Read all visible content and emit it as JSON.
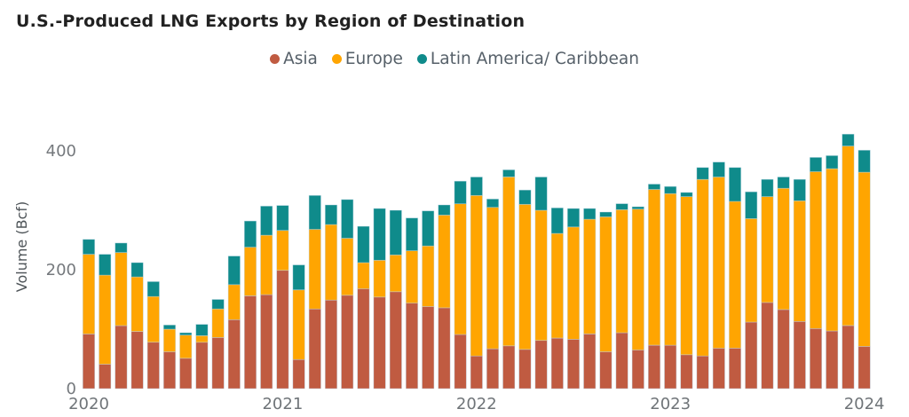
{
  "title": "U.S.-Produced LNG Exports by Region of Destination",
  "legend": {
    "items": [
      {
        "label": "Asia",
        "color": "#c05b41"
      },
      {
        "label": "Europe",
        "color": "#ffa501"
      },
      {
        "label": "Latin America/ Caribbean",
        "color": "#0f8b8b"
      }
    ]
  },
  "y_axis": {
    "label": "Volume (Bcf)",
    "ticks": [
      "0",
      "200",
      "400"
    ]
  },
  "x_axis": {
    "labels": [
      "2020",
      "2021",
      "2022",
      "2023",
      "2024"
    ]
  },
  "chart_data": {
    "type": "bar",
    "stacked": true,
    "title": "U.S.-Produced LNG Exports by Region of Destination",
    "xlabel": "",
    "ylabel": "Volume (Bcf)",
    "ylim": [
      0,
      450
    ],
    "yticks": [
      0,
      200,
      400
    ],
    "grid": false,
    "legend_position": "top",
    "categories": [
      "Jan 2020",
      "Feb 2020",
      "Mar 2020",
      "Apr 2020",
      "May 2020",
      "Jun 2020",
      "Jul 2020",
      "Aug 2020",
      "Sep 2020",
      "Oct 2020",
      "Nov 2020",
      "Dec 2020",
      "Jan 2021",
      "Feb 2021",
      "Mar 2021",
      "Apr 2021",
      "May 2021",
      "Jun 2021",
      "Jul 2021",
      "Aug 2021",
      "Sep 2021",
      "Oct 2021",
      "Nov 2021",
      "Dec 2021",
      "Jan 2022",
      "Feb 2022",
      "Mar 2022",
      "Apr 2022",
      "May 2022",
      "Jun 2022",
      "Jul 2022",
      "Aug 2022",
      "Sep 2022",
      "Oct 2022",
      "Nov 2022",
      "Dec 2022",
      "Jan 2023",
      "Feb 2023",
      "Mar 2023",
      "Apr 2023",
      "May 2023",
      "Jun 2023",
      "Jul 2023",
      "Aug 2023",
      "Sep 2023",
      "Oct 2023",
      "Nov 2023",
      "Dec 2023",
      "Jan 2024"
    ],
    "series": [
      {
        "name": "Asia",
        "color": "#c05b41",
        "values": [
          92,
          41,
          106,
          96,
          78,
          62,
          51,
          78,
          86,
          116,
          156,
          158,
          199,
          49,
          134,
          149,
          157,
          168,
          154,
          163,
          144,
          138,
          136,
          91,
          55,
          67,
          72,
          66,
          81,
          85,
          83,
          92,
          62,
          94,
          65,
          73,
          73,
          57,
          55,
          68,
          68,
          112,
          145,
          133,
          113,
          101,
          97,
          106,
          71
        ]
      },
      {
        "name": "Europe",
        "color": "#ffa501",
        "values": [
          134,
          150,
          123,
          92,
          77,
          38,
          39,
          11,
          48,
          59,
          82,
          100,
          67,
          117,
          134,
          127,
          96,
          44,
          62,
          62,
          88,
          102,
          156,
          220,
          270,
          238,
          284,
          244,
          219,
          176,
          189,
          193,
          227,
          207,
          237,
          262,
          255,
          266,
          297,
          288,
          247,
          174,
          178,
          204,
          203,
          264,
          273,
          302,
          293
        ]
      },
      {
        "name": "Latin America/ Caribbean",
        "color": "#0f8b8b",
        "values": [
          25,
          35,
          16,
          24,
          25,
          7,
          4,
          19,
          16,
          48,
          44,
          49,
          42,
          42,
          57,
          33,
          65,
          61,
          87,
          75,
          55,
          59,
          17,
          38,
          31,
          14,
          12,
          24,
          56,
          43,
          31,
          18,
          8,
          10,
          4,
          9,
          12,
          7,
          20,
          25,
          57,
          45,
          29,
          19,
          36,
          24,
          22,
          20,
          37
        ]
      }
    ]
  }
}
